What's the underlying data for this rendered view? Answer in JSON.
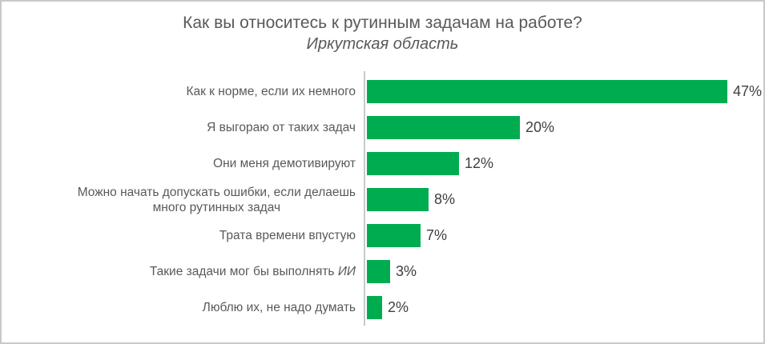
{
  "page": {
    "background_color": "#FFFFFF",
    "border_color": "#C9C9C9"
  },
  "chart_data": {
    "type": "bar",
    "orientation": "horizontal",
    "title": "Как вы относитесь к рутинным задачам на работе?",
    "subtitle": "Иркутская область",
    "categories": [
      "Как к норме, если их немного",
      "Я выгораю от таких задач",
      "Они меня демотивируют",
      "Можно начать допускать ошибки, если делаешь\nмного рутинных задач",
      "Трата времени впустую",
      "Такие задачи мог бы выполнять ИИ",
      "Люблю их, не надо думать"
    ],
    "values": [
      47,
      20,
      12,
      8,
      7,
      3,
      2
    ],
    "value_labels": [
      "47%",
      "20%",
      "12%",
      "8%",
      "7%",
      "3%",
      "2%"
    ],
    "unit": "%",
    "xlim": [
      0,
      47
    ],
    "grid": false,
    "legend": false,
    "data_labels": "outside-end",
    "italic_terms": [
      "ИИ"
    ],
    "bar_color": "#00AC50",
    "category_label_color": "#595959",
    "value_label_color": "#404040",
    "title_color": "#595959",
    "axis_line_color": "#C9C9C9"
  }
}
